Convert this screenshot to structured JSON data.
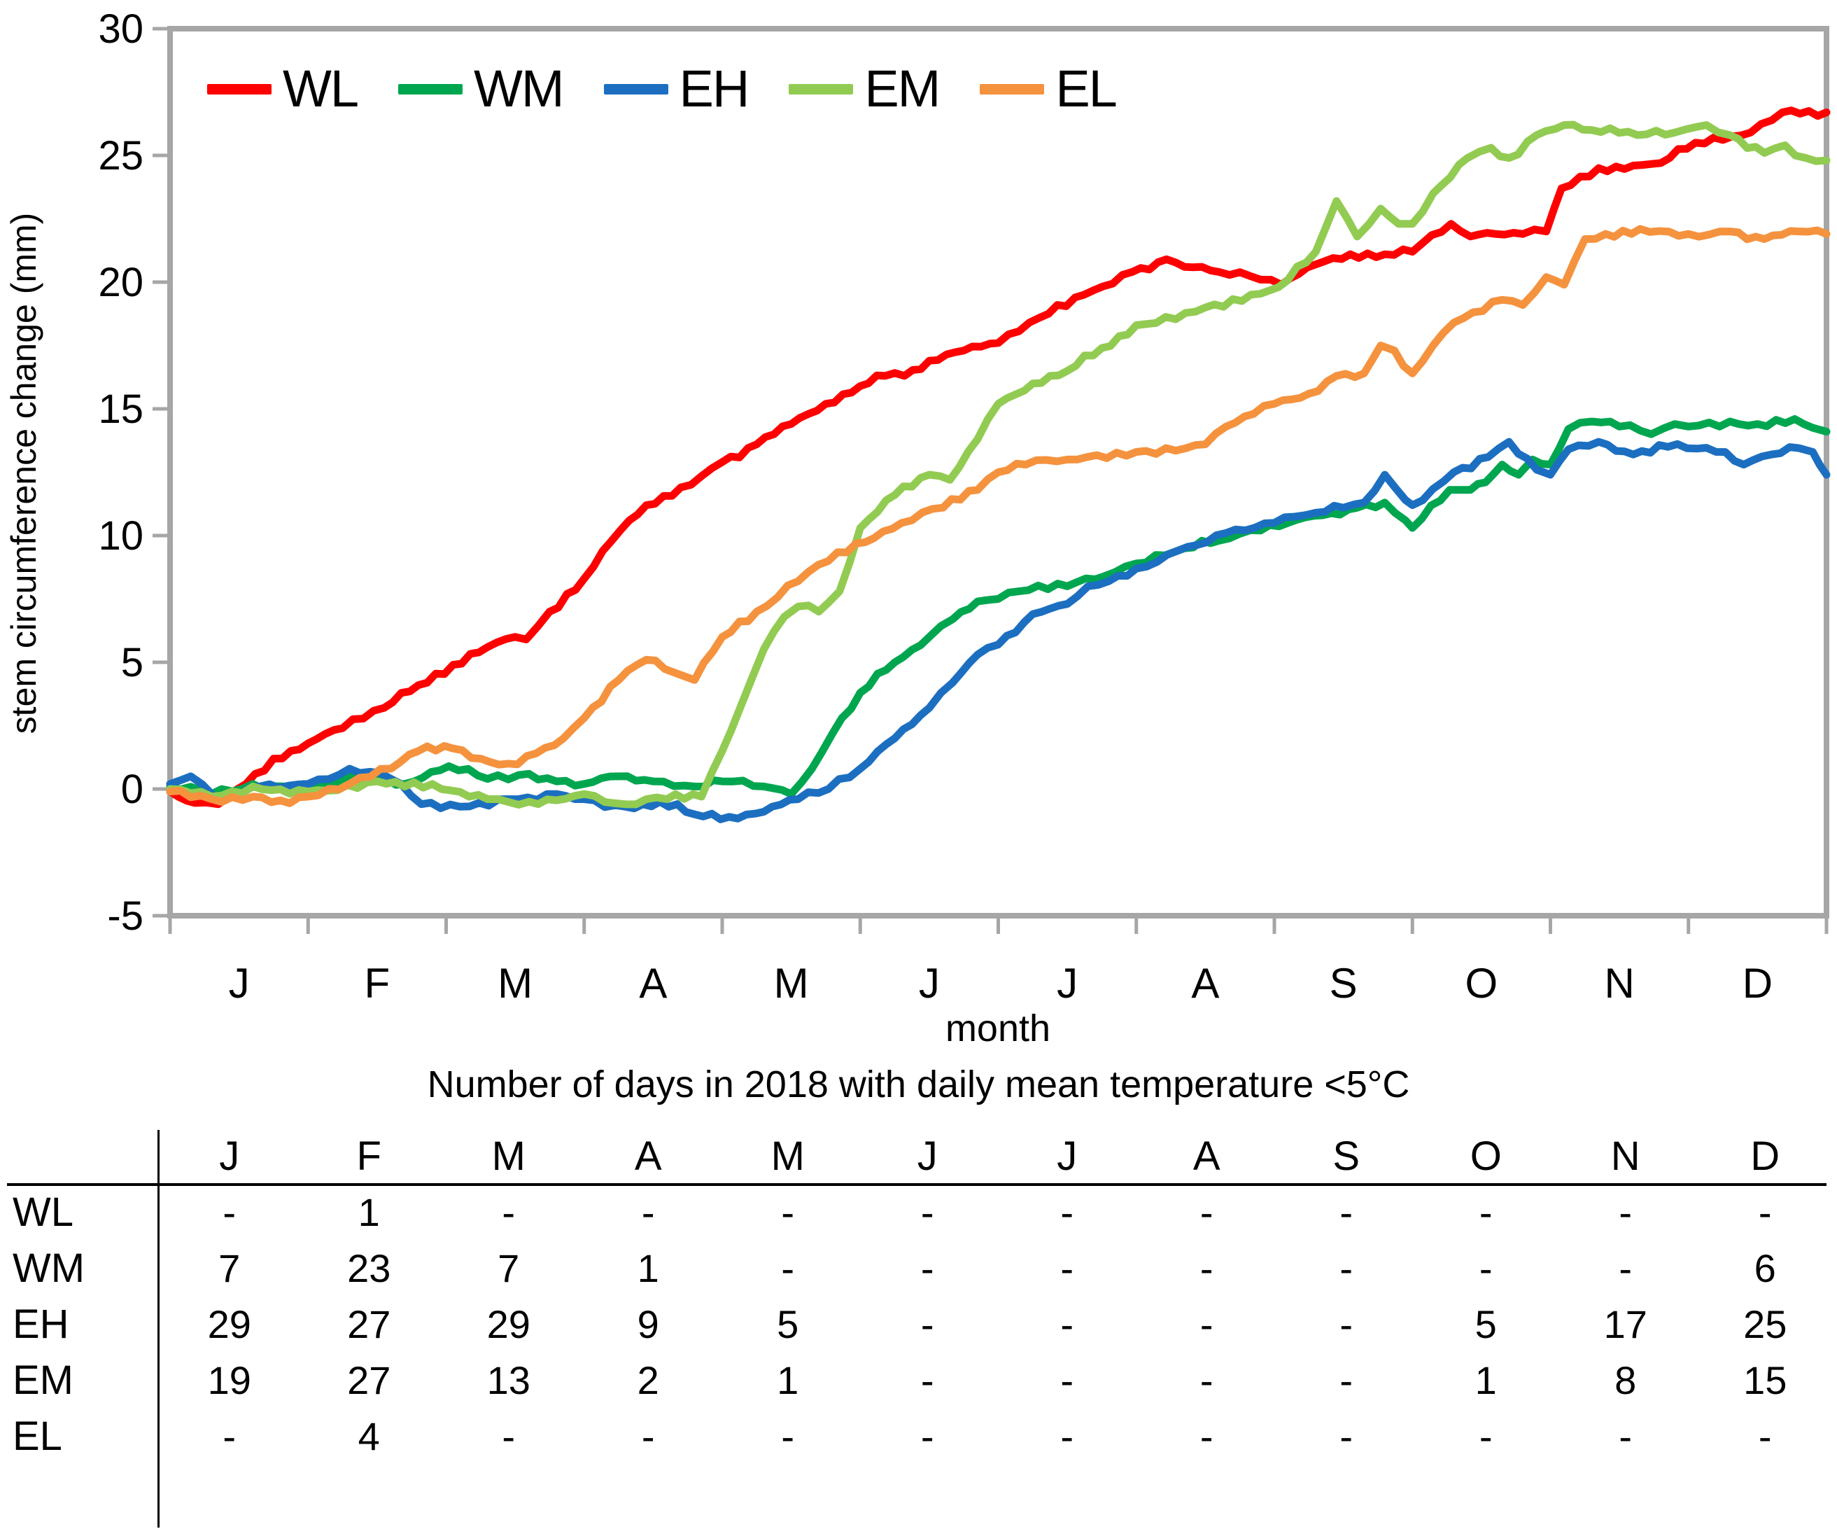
{
  "chart_data": {
    "type": "line",
    "title": "",
    "xlabel": "month",
    "ylabel": "stem circumference change (mm)",
    "x_tick_labels": [
      "J",
      "F",
      "M",
      "A",
      "M",
      "J",
      "J",
      "A",
      "S",
      "O",
      "N",
      "D"
    ],
    "y_ticks": [
      30,
      25,
      20,
      15,
      10,
      5,
      0,
      -5
    ],
    "ylim": [
      -5,
      30
    ],
    "x_range_months": [
      0,
      12
    ],
    "grid": false,
    "legend_position": "top-left-inside",
    "axis_color": "#A6A6A6",
    "series": [
      {
        "name": "WL",
        "color": "#FF0000",
        "points": [
          [
            0,
            -0.1
          ],
          [
            0.18,
            -0.55
          ],
          [
            0.35,
            -0.6
          ],
          [
            0.55,
            0.2
          ],
          [
            0.75,
            1.2
          ],
          [
            1,
            1.8
          ],
          [
            1.25,
            2.4
          ],
          [
            1.55,
            3.2
          ],
          [
            1.8,
            4.1
          ],
          [
            2.05,
            4.9
          ],
          [
            2.3,
            5.6
          ],
          [
            2.5,
            6
          ],
          [
            2.58,
            5.9
          ],
          [
            2.75,
            7
          ],
          [
            3,
            8.3
          ],
          [
            3.2,
            9.8
          ],
          [
            3.45,
            11.2
          ],
          [
            3.7,
            11.9
          ],
          [
            4,
            12.9
          ],
          [
            4.25,
            13.6
          ],
          [
            4.5,
            14.4
          ],
          [
            4.75,
            15.2
          ],
          [
            5,
            15.9
          ],
          [
            5.18,
            16.3
          ],
          [
            5.32,
            16.3
          ],
          [
            5.5,
            16.9
          ],
          [
            5.75,
            17.3
          ],
          [
            6,
            17.6
          ],
          [
            6.3,
            18.6
          ],
          [
            6.62,
            19.5
          ],
          [
            6.97,
            20.4
          ],
          [
            7.22,
            20.9
          ],
          [
            7.35,
            20.6
          ],
          [
            7.6,
            20.4
          ],
          [
            7.9,
            20.1
          ],
          [
            8.05,
            19.9
          ],
          [
            8.3,
            20.7
          ],
          [
            8.55,
            21.1
          ],
          [
            8.8,
            21.1
          ],
          [
            9,
            21.2
          ],
          [
            9.28,
            22.3
          ],
          [
            9.42,
            21.8
          ],
          [
            9.6,
            21.9
          ],
          [
            9.8,
            21.9
          ],
          [
            9.97,
            22
          ],
          [
            10.08,
            23.7
          ],
          [
            10.35,
            24.5
          ],
          [
            10.6,
            24.6
          ],
          [
            10.8,
            24.7
          ],
          [
            11.05,
            25.5
          ],
          [
            11.45,
            25.9
          ],
          [
            11.68,
            26.7
          ],
          [
            12,
            26.7
          ]
        ]
      },
      {
        "name": "WM",
        "color": "#00A64F",
        "points": [
          [
            0,
            0.1
          ],
          [
            0.3,
            -0.2
          ],
          [
            0.6,
            0.2
          ],
          [
            0.9,
            0
          ],
          [
            1.1,
            0.2
          ],
          [
            1.45,
            0.5
          ],
          [
            1.7,
            0.2
          ],
          [
            2.02,
            0.9
          ],
          [
            2.3,
            0.4
          ],
          [
            2.6,
            0.6
          ],
          [
            2.8,
            0.3
          ],
          [
            3,
            0.2
          ],
          [
            3.25,
            0.5
          ],
          [
            3.5,
            0.3
          ],
          [
            3.8,
            0.1
          ],
          [
            4,
            0.3
          ],
          [
            4.3,
            0.1
          ],
          [
            4.5,
            -0.2
          ],
          [
            4.65,
            0.8
          ],
          [
            4.8,
            2.2
          ],
          [
            5,
            3.8
          ],
          [
            5.25,
            5
          ],
          [
            5.5,
            6
          ],
          [
            5.67,
            6.7
          ],
          [
            5.85,
            7.4
          ],
          [
            6,
            7.5
          ],
          [
            6.15,
            7.8
          ],
          [
            6.5,
            8
          ],
          [
            6.77,
            8.4
          ],
          [
            7,
            8.9
          ],
          [
            7.35,
            9.5
          ],
          [
            7.6,
            9.8
          ],
          [
            7.9,
            10.2
          ],
          [
            8.1,
            10.5
          ],
          [
            8.35,
            10.8
          ],
          [
            8.6,
            11.1
          ],
          [
            8.8,
            11.3
          ],
          [
            8.95,
            10.6
          ],
          [
            9,
            10.3
          ],
          [
            9.27,
            11.8
          ],
          [
            9.42,
            11.8
          ],
          [
            9.53,
            12.1
          ],
          [
            9.65,
            12.8
          ],
          [
            9.77,
            12.4
          ],
          [
            9.87,
            13
          ],
          [
            10,
            12.8
          ],
          [
            10.13,
            14.2
          ],
          [
            10.3,
            14.5
          ],
          [
            10.5,
            14.3
          ],
          [
            10.73,
            14
          ],
          [
            10.9,
            14.4
          ],
          [
            11,
            14.3
          ],
          [
            11.3,
            14.5
          ],
          [
            11.5,
            14.4
          ],
          [
            11.77,
            14.6
          ],
          [
            11.9,
            14.25
          ],
          [
            12,
            14.1
          ]
        ]
      },
      {
        "name": "EH",
        "color": "#1C6FC0",
        "points": [
          [
            0,
            0.2
          ],
          [
            0.15,
            0.5
          ],
          [
            0.32,
            -0.3
          ],
          [
            0.65,
            0.1
          ],
          [
            1,
            0.2
          ],
          [
            1.3,
            0.8
          ],
          [
            1.6,
            0.4
          ],
          [
            1.82,
            -0.6
          ],
          [
            2.1,
            -0.7
          ],
          [
            2.45,
            -0.4
          ],
          [
            2.8,
            -0.2
          ],
          [
            3,
            -0.4
          ],
          [
            3.3,
            -0.7
          ],
          [
            3.55,
            -0.5
          ],
          [
            3.8,
            -1
          ],
          [
            4.05,
            -1.1
          ],
          [
            4.3,
            -0.9
          ],
          [
            4.55,
            -0.4
          ],
          [
            4.77,
            0
          ],
          [
            5,
            0.8
          ],
          [
            5.25,
            2
          ],
          [
            5.5,
            3.2
          ],
          [
            5.67,
            4.2
          ],
          [
            5.85,
            5.3
          ],
          [
            6,
            5.7
          ],
          [
            6.25,
            6.9
          ],
          [
            6.5,
            7.3
          ],
          [
            6.65,
            8
          ],
          [
            6.8,
            8.2
          ],
          [
            7,
            8.7
          ],
          [
            7.3,
            9.4
          ],
          [
            7.65,
            10.1
          ],
          [
            8,
            10.5
          ],
          [
            8.3,
            10.9
          ],
          [
            8.5,
            11.1
          ],
          [
            8.65,
            11.3
          ],
          [
            8.8,
            12.4
          ],
          [
            8.95,
            11.4
          ],
          [
            9,
            11.2
          ],
          [
            9.3,
            12.5
          ],
          [
            9.55,
            13.1
          ],
          [
            9.7,
            13.7
          ],
          [
            9.9,
            12.6
          ],
          [
            10,
            12.4
          ],
          [
            10.13,
            13.4
          ],
          [
            10.35,
            13.7
          ],
          [
            10.6,
            13.2
          ],
          [
            10.85,
            13.5
          ],
          [
            11.2,
            13.3
          ],
          [
            11.4,
            12.8
          ],
          [
            11.6,
            13.2
          ],
          [
            11.8,
            13.45
          ],
          [
            11.9,
            13.3
          ],
          [
            11.95,
            12.8
          ],
          [
            12,
            12.4
          ]
        ]
      },
      {
        "name": "EM",
        "color": "#92CB52",
        "points": [
          [
            0,
            0
          ],
          [
            0.3,
            -0.3
          ],
          [
            0.6,
            0.1
          ],
          [
            1,
            -0.1
          ],
          [
            1.5,
            0.3
          ],
          [
            1.9,
            0.2
          ],
          [
            2.3,
            -0.4
          ],
          [
            2.6,
            -0.5
          ],
          [
            3,
            -0.2
          ],
          [
            3.3,
            -0.6
          ],
          [
            3.6,
            -0.4
          ],
          [
            3.85,
            -0.3
          ],
          [
            4,
            1.5
          ],
          [
            4.13,
            3.2
          ],
          [
            4.3,
            5.5
          ],
          [
            4.45,
            6.8
          ],
          [
            4.55,
            7.2
          ],
          [
            4.7,
            7
          ],
          [
            4.85,
            7.8
          ],
          [
            5,
            10.3
          ],
          [
            5.25,
            11.6
          ],
          [
            5.5,
            12.4
          ],
          [
            5.65,
            12.2
          ],
          [
            5.85,
            13.8
          ],
          [
            6,
            15.2
          ],
          [
            6.25,
            16
          ],
          [
            6.5,
            16.5
          ],
          [
            6.75,
            17.4
          ],
          [
            7,
            18.3
          ],
          [
            7.5,
            19
          ],
          [
            8.03,
            19.8
          ],
          [
            8.3,
            21.2
          ],
          [
            8.45,
            23.2
          ],
          [
            8.6,
            21.8
          ],
          [
            8.77,
            22.9
          ],
          [
            8.9,
            22.3
          ],
          [
            9,
            22.3
          ],
          [
            9.15,
            23.5
          ],
          [
            9.4,
            24.9
          ],
          [
            9.57,
            25.3
          ],
          [
            9.7,
            24.9
          ],
          [
            9.9,
            25.8
          ],
          [
            10.1,
            26.2
          ],
          [
            10.3,
            26
          ],
          [
            10.63,
            25.8
          ],
          [
            10.9,
            25.9
          ],
          [
            11.13,
            26.2
          ],
          [
            11.3,
            25.8
          ],
          [
            11.55,
            25.1
          ],
          [
            11.7,
            25.4
          ],
          [
            11.85,
            24.9
          ],
          [
            12,
            24.8
          ]
        ]
      },
      {
        "name": "EL",
        "color": "#F5923E",
        "points": [
          [
            0,
            -0.1
          ],
          [
            0.3,
            -0.4
          ],
          [
            0.6,
            -0.3
          ],
          [
            0.8,
            -0.45
          ],
          [
            1,
            -0.3
          ],
          [
            1.3,
            0.2
          ],
          [
            1.6,
            0.8
          ],
          [
            1.8,
            1.5
          ],
          [
            2.05,
            1.6
          ],
          [
            2.25,
            1.2
          ],
          [
            2.45,
            1
          ],
          [
            2.65,
            1.4
          ],
          [
            2.85,
            2
          ],
          [
            3,
            2.8
          ],
          [
            3.25,
            4.3
          ],
          [
            3.45,
            5.1
          ],
          [
            3.65,
            4.6
          ],
          [
            3.8,
            4.3
          ],
          [
            4,
            6
          ],
          [
            4.25,
            7
          ],
          [
            4.55,
            8.2
          ],
          [
            4.77,
            9
          ],
          [
            5.1,
            9.9
          ],
          [
            5.3,
            10.5
          ],
          [
            5.6,
            11.1
          ],
          [
            5.85,
            11.8
          ],
          [
            6,
            12.5
          ],
          [
            6.2,
            12.8
          ],
          [
            6.5,
            13
          ],
          [
            7,
            13.3
          ],
          [
            7.5,
            13.6
          ],
          [
            7.65,
            14.3
          ],
          [
            7.85,
            14.8
          ],
          [
            8,
            15.2
          ],
          [
            8.25,
            15.6
          ],
          [
            8.45,
            16.3
          ],
          [
            8.65,
            16.4
          ],
          [
            8.77,
            17.5
          ],
          [
            8.87,
            17.3
          ],
          [
            9,
            16.4
          ],
          [
            9.15,
            17.5
          ],
          [
            9.3,
            18.4
          ],
          [
            9.65,
            19.3
          ],
          [
            9.8,
            19.1
          ],
          [
            9.97,
            20.2
          ],
          [
            10.1,
            19.9
          ],
          [
            10.25,
            21.7
          ],
          [
            10.4,
            21.9
          ],
          [
            10.65,
            22.1
          ],
          [
            11,
            21.9
          ],
          [
            11.3,
            22
          ],
          [
            11.55,
            21.7
          ],
          [
            11.8,
            22
          ],
          [
            12,
            21.9
          ]
        ]
      }
    ]
  },
  "table": {
    "title": "Number of days in 2018 with daily mean temperature <5°C",
    "columns": [
      "J",
      "F",
      "M",
      "A",
      "M",
      "J",
      "J",
      "A",
      "S",
      "O",
      "N",
      "D"
    ],
    "rows": [
      {
        "label": "WL",
        "values": [
          "-",
          "1",
          "-",
          "-",
          "-",
          "-",
          "-",
          "-",
          "-",
          "-",
          "-",
          "-"
        ]
      },
      {
        "label": "WM",
        "values": [
          "7",
          "23",
          "7",
          "1",
          "-",
          "-",
          "-",
          "-",
          "-",
          "-",
          "-",
          "6"
        ]
      },
      {
        "label": "EH",
        "values": [
          "29",
          "27",
          "29",
          "9",
          "5",
          "-",
          "-",
          "-",
          "-",
          "5",
          "17",
          "25"
        ]
      },
      {
        "label": "EM",
        "values": [
          "19",
          "27",
          "13",
          "2",
          "1",
          "-",
          "-",
          "-",
          "-",
          "1",
          "8",
          "15"
        ]
      },
      {
        "label": "EL",
        "values": [
          "-",
          "4",
          "-",
          "-",
          "-",
          "-",
          "-",
          "-",
          "-",
          "-",
          "-",
          "-"
        ]
      }
    ]
  }
}
